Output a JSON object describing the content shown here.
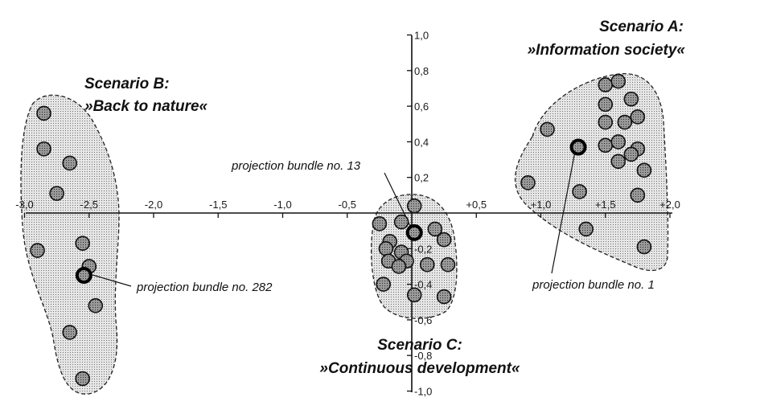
{
  "chart_data": {
    "type": "scatter",
    "title": "",
    "xlabel": "",
    "ylabel": "",
    "xlim": [
      -3.0,
      2.0
    ],
    "ylim": [
      -1.0,
      1.0
    ],
    "x_ticks": [
      "-3,0",
      "-2,5",
      "-2,0",
      "-1,5",
      "-1,0",
      "-0,5",
      "+0,5",
      "+1,0",
      "+1,5",
      "+2,0"
    ],
    "y_ticks": [
      "1,0",
      "0,8",
      "0,6",
      "0,4",
      "0,2",
      "-0,2",
      "-0,4",
      "-0,6",
      "-0,8",
      "-1,0"
    ],
    "grid": false,
    "clusters": [
      {
        "title_line1": "Scenario A:",
        "title_line2": "»Information society«",
        "points": [
          [
            1.5,
            0.72
          ],
          [
            1.6,
            0.74
          ],
          [
            1.7,
            0.64
          ],
          [
            1.5,
            0.61
          ],
          [
            1.65,
            0.51
          ],
          [
            1.75,
            0.54
          ],
          [
            1.5,
            0.51
          ],
          [
            1.05,
            0.47
          ],
          [
            1.5,
            0.38
          ],
          [
            1.6,
            0.4
          ],
          [
            1.75,
            0.36
          ],
          [
            1.7,
            0.33
          ],
          [
            1.6,
            0.29
          ],
          [
            1.8,
            0.24
          ],
          [
            0.9,
            0.17
          ],
          [
            1.3,
            0.12
          ],
          [
            1.75,
            0.1
          ],
          [
            1.35,
            -0.09
          ],
          [
            1.8,
            -0.19
          ]
        ],
        "highlight": {
          "point": [
            1.29,
            0.37
          ],
          "label": "projection bundle no. 1"
        }
      },
      {
        "title_line1": "Scenario B:",
        "title_line2": "»Back to nature«",
        "points": [
          [
            -2.85,
            0.56
          ],
          [
            -2.85,
            0.36
          ],
          [
            -2.65,
            0.28
          ],
          [
            -2.75,
            0.11
          ],
          [
            -2.9,
            -0.21
          ],
          [
            -2.55,
            -0.17
          ],
          [
            -2.5,
            -0.3
          ],
          [
            -2.45,
            -0.52
          ],
          [
            -2.65,
            -0.67
          ],
          [
            -2.55,
            -0.93
          ]
        ],
        "highlight": {
          "point": [
            -2.54,
            -0.35
          ],
          "label": "projection bundle no. 282"
        }
      },
      {
        "title_line1": "Scenario C:",
        "title_line2": "»Continuous development«",
        "points": [
          [
            0.02,
            0.04
          ],
          [
            -0.08,
            -0.05
          ],
          [
            -0.25,
            -0.06
          ],
          [
            0.18,
            -0.09
          ],
          [
            -0.17,
            -0.16
          ],
          [
            -0.2,
            -0.2
          ],
          [
            -0.08,
            -0.22
          ],
          [
            0.25,
            -0.15
          ],
          [
            -0.04,
            -0.27
          ],
          [
            -0.18,
            -0.27
          ],
          [
            -0.1,
            -0.3
          ],
          [
            0.12,
            -0.29
          ],
          [
            0.28,
            -0.29
          ],
          [
            -0.22,
            -0.4
          ],
          [
            0.02,
            -0.46
          ],
          [
            0.25,
            -0.47
          ]
        ],
        "highlight": {
          "point": [
            0.02,
            -0.11
          ],
          "label": "projection bundle no. 13"
        }
      }
    ]
  }
}
